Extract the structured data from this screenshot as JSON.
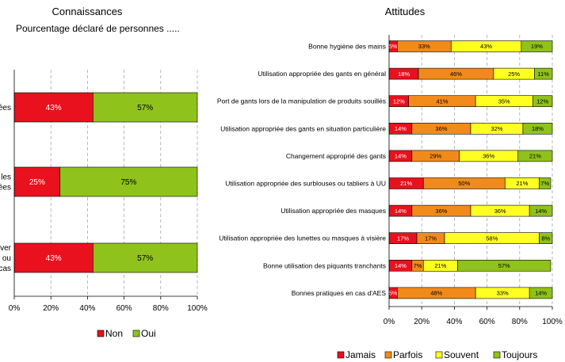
{
  "colors": {
    "jamais_non": "#e8111d",
    "parfois": "#f28a1a",
    "souvent": "#ffff22",
    "toujours_oui": "#8fc21b"
  },
  "chart_data": [
    {
      "type": "bar",
      "orientation": "horizontal",
      "stacked": true,
      "title": "Connaissances",
      "subtitle": "Pourcentage déclaré de personnes .....",
      "categories": [
        "...ées",
        "...s les ...ées",
        "...uver ou ...cas"
      ],
      "category_lines": [
        [
          "ées"
        ],
        [
          "s les",
          "ées"
        ],
        [
          "uver",
          "ou",
          "cas"
        ]
      ],
      "series": [
        {
          "name": "Non",
          "values": [
            43,
            25,
            43
          ],
          "labels": [
            "43%",
            "25%",
            "43%"
          ]
        },
        {
          "name": "Oui",
          "values": [
            57,
            75,
            57
          ],
          "labels": [
            "57%",
            "75%",
            "57%"
          ]
        }
      ],
      "xlim": [
        0,
        100
      ],
      "ticks": [
        "0%",
        "20%",
        "40%",
        "60%",
        "80%",
        "100%"
      ],
      "grid": "vertical dashed",
      "legend": "bottom"
    },
    {
      "type": "bar",
      "orientation": "horizontal",
      "stacked": true,
      "title": "Attitudes",
      "categories": [
        "Bonne hygiène des mains",
        "Utilisation appropriée des gants en général",
        "Port de gants lors de la manipulation de produits souillés",
        "Utilisation appropriée des gants en situation particulière",
        "Changement approprié des gants",
        "Utilisation appropriée des surblouses ou tabliers à UU",
        "Utilisation appropriée des masques",
        "Utilisation appropriée des lunettes ou masques à visière",
        "Bonne utilisation des piquants tranchants",
        "Bonnes pratiques en cas d'AES"
      ],
      "series": [
        {
          "name": "Jamais",
          "values": [
            5,
            18,
            12,
            14,
            14,
            21,
            14,
            17,
            14,
            5
          ],
          "labels": [
            "5%",
            "18%",
            "12%",
            "14%",
            "14%",
            "21%",
            "14%",
            "17%",
            "14%",
            "5%"
          ]
        },
        {
          "name": "Parfois",
          "values": [
            33,
            46,
            41,
            36,
            29,
            50,
            36,
            17,
            7,
            48
          ],
          "labels": [
            "33%",
            "46%",
            "41%",
            "36%",
            "29%",
            "50%",
            "36%",
            "17%",
            "7%",
            "48%"
          ]
        },
        {
          "name": "Souvent",
          "values": [
            43,
            25,
            35,
            32,
            36,
            21,
            36,
            58,
            21,
            33
          ],
          "labels": [
            "43%",
            "25%",
            "35%",
            "32%",
            "36%",
            "21%",
            "36%",
            "58%",
            "21%",
            "33%"
          ]
        },
        {
          "name": "Toujours",
          "values": [
            19,
            11,
            12,
            18,
            21,
            7,
            14,
            8,
            57,
            14
          ],
          "labels": [
            "19%",
            "11%",
            "12%",
            "18%",
            "21%",
            "7%",
            "14%",
            "8%",
            "57%",
            "14%"
          ]
        }
      ],
      "xlim": [
        0,
        100
      ],
      "ticks": [
        "0%",
        "20%",
        "40%",
        "60%",
        "80%",
        "100%"
      ],
      "grid": "vertical dashed",
      "legend": "bottom"
    }
  ]
}
